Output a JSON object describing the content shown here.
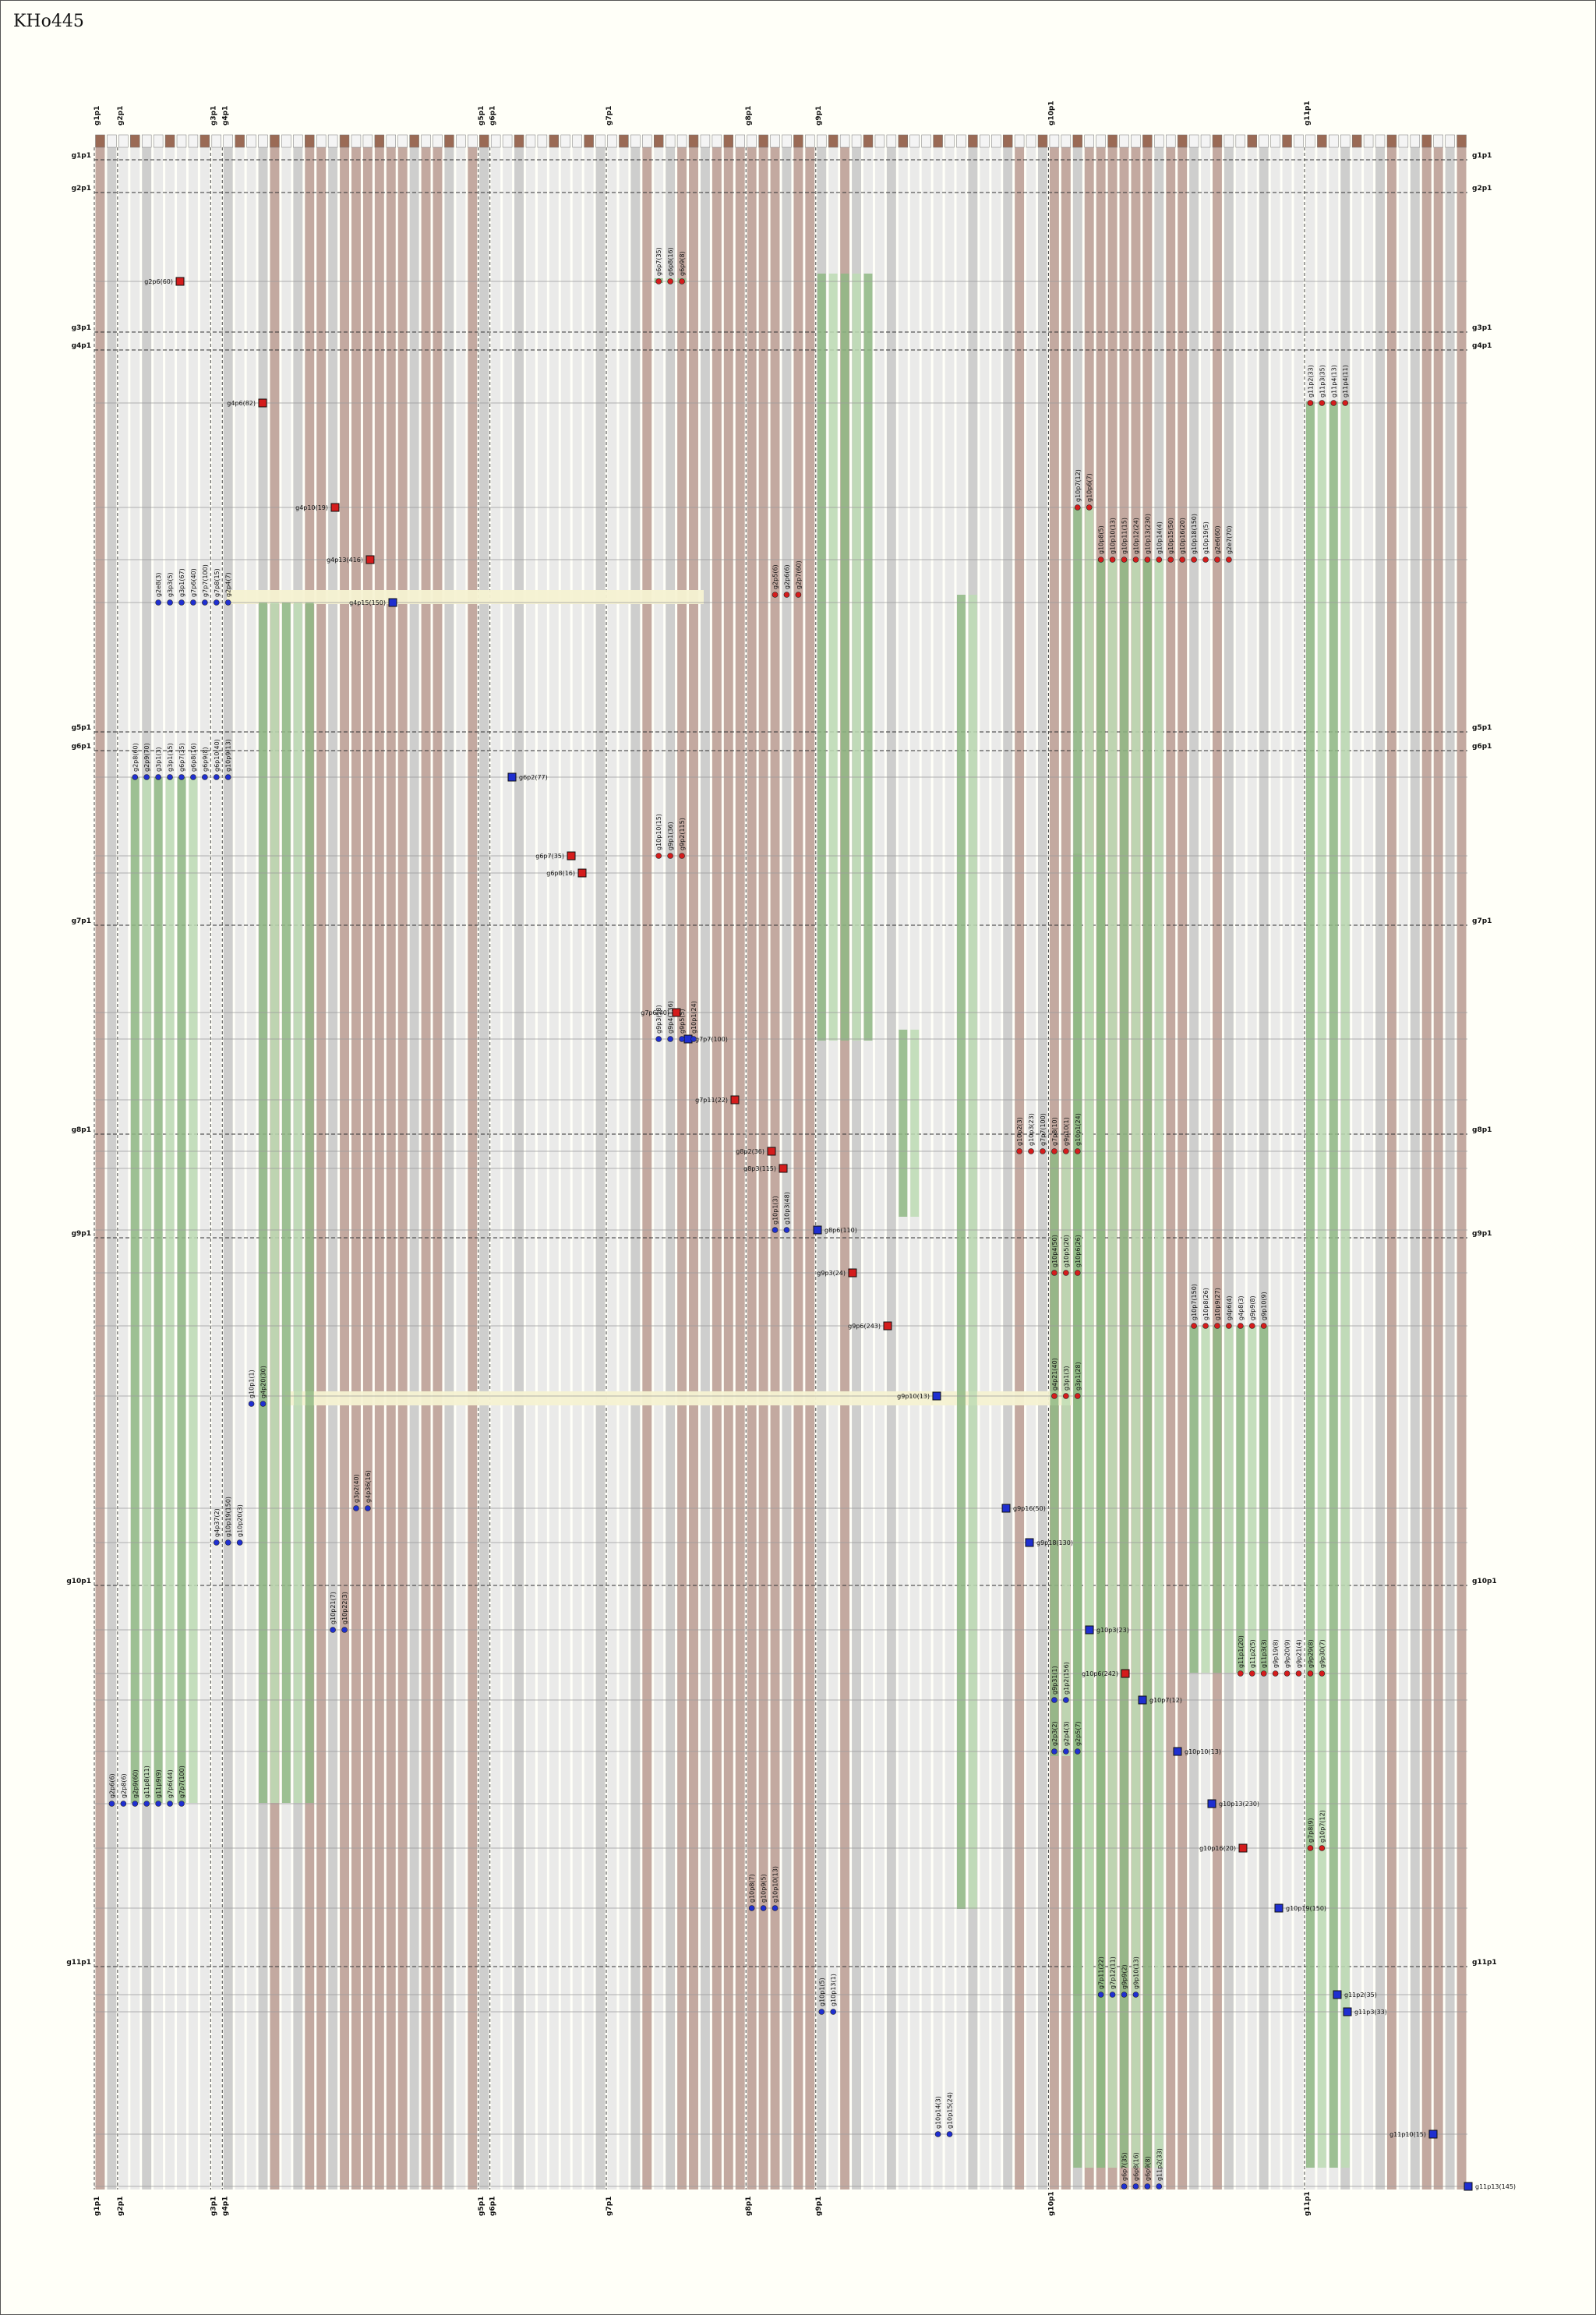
{
  "title": "KHo445",
  "colors": {
    "background": "#fffff8",
    "track_brown": "#b99a90",
    "track_gray": "#c6c6c6",
    "track_light": "#e6e6e6",
    "match_green": "#8fb884",
    "match_green_light": "#bddcb4",
    "highlight": "#f6f2d2",
    "terminal_red": "#d41c1c",
    "terminal_blue": "#1f2fd0",
    "row_line": "#9a9a9a"
  },
  "top_labels": [
    "g1p1",
    "g2p1",
    "g3p1",
    "g4p1",
    "g5p1",
    "g6p1",
    "g7p1",
    "g8p1",
    "g9p1",
    "g10p1",
    "g11p1"
  ],
  "bottom_labels": [
    "g1p1",
    "g2p1",
    "g3p1",
    "g4p1",
    "g5p1",
    "g6p1",
    "g7p1",
    "g8p1",
    "g9p1",
    "g10p1",
    "g11p1"
  ],
  "row_labels": [
    "g1p1",
    "g2p1",
    "g3p1",
    "g4p1",
    "g5p1",
    "g6p1",
    "g7p1",
    "g8p1",
    "g9p1",
    "g10p1",
    "g11p1"
  ],
  "terminal_labels": [
    "g2p6(60)",
    "g4p6(82)",
    "g4p10(19)",
    "g4p13(416)",
    "g4p15(150)",
    "g6p2(77)",
    "g6p7(35)",
    "g6p8(16)",
    "g7p6(40)",
    "g7p7(100)",
    "g7p11(22)",
    "g8p2(36)",
    "g8p3(115)",
    "g8p6(110)",
    "g9p3(24)",
    "g9p6(243)",
    "g9p10(13)",
    "g9p16(50)",
    "g9p18(130)",
    "g10p3(23)",
    "g10p6(242)",
    "g10p7(12)",
    "g10p10(13)",
    "g10p13(230)",
    "g10p16(20)",
    "g10p19(150)",
    "g11p2(35)",
    "g11p3(33)",
    "g11p10(15)",
    "g11p13(145)"
  ],
  "match_labels": [
    "g6p7(35)",
    "g6p8(16)",
    "g6p9(8)",
    "g11p2(33)",
    "g11p3(35)",
    "g11p4(13)",
    "g11p4(11)",
    "g10p7(12)",
    "g10p6(7)",
    "g10p8(5)",
    "g10p10(13)",
    "g10p11(15)",
    "g10p12(24)",
    "g10p13(230)",
    "g10p14(4)",
    "g10p15(50)",
    "g10p16(20)",
    "g10p18(150)",
    "g10p19(5)",
    "g2e6(60)",
    "g2e7(70)",
    "g2e8(3)",
    "g3p3(5)",
    "g3p1(67)",
    "g7p6(40)",
    "g7p7(100)",
    "g7p8(15)",
    "g2p4(7)",
    "g2p5(6)",
    "g2p6(6)",
    "g2p7(60)",
    "g2p8(60)",
    "g2p9(70)",
    "g3p1(3)",
    "g3p1(15)",
    "g6p7(35)",
    "g6p8(16)",
    "g6p9(8)",
    "g6p10(40)",
    "g10p9(13)",
    "g10p10(15)",
    "g9p1(36)",
    "g9p2(115)",
    "g9p3(58)",
    "g9p4(136)",
    "g9p5(5)",
    "g10p1(24)",
    "g10p2(3)",
    "g10p3(23)",
    "g7p7(100)",
    "g7p8(10)",
    "g9p10(1)",
    "g10p1(24)",
    "g10p1(3)",
    "g10p3(48)",
    "g10p4(50)",
    "g10p5(20)",
    "g10p6(26)",
    "g10p7(150)",
    "g10p8(26)",
    "g10p9(27)",
    "g4p6(4)",
    "g4p8(3)",
    "g9p9(8)",
    "g9p10(9)",
    "g10p1(1)",
    "g4p20(30)",
    "g4p21(40)",
    "g3p1(3)",
    "g3p1(28)",
    "g3p2(40)",
    "g4p36(16)",
    "g4p37(2)",
    "g10p19(150)",
    "g10p20(3)",
    "g10p21(7)",
    "g10p22(3)",
    "g11p1(20)",
    "g11p2(5)",
    "g11p3(3)",
    "g9p19(8)",
    "g9p20(9)",
    "g9p21(4)",
    "g9p29(8)",
    "g9p30(7)",
    "g9p31(1)",
    "g1p2(156)",
    "g2p3(2)",
    "g2p4(3)",
    "g2p5(7)",
    "g2p6(6)",
    "g2p8(6)",
    "g2p9(60)",
    "g11p8(11)",
    "g11p9(9)",
    "g7p6(44)",
    "g7p7(100)",
    "g7p8(9)",
    "g10p7(12)",
    "g10p8(7)",
    "g10p9(5)",
    "g10p10(13)",
    "g7p11(22)",
    "g7p12(11)",
    "g9p9(2)",
    "g9p10(13)",
    "g10p1(5)",
    "g10p13(1)",
    "g10p14(3)",
    "g10p15(24)"
  ]
}
